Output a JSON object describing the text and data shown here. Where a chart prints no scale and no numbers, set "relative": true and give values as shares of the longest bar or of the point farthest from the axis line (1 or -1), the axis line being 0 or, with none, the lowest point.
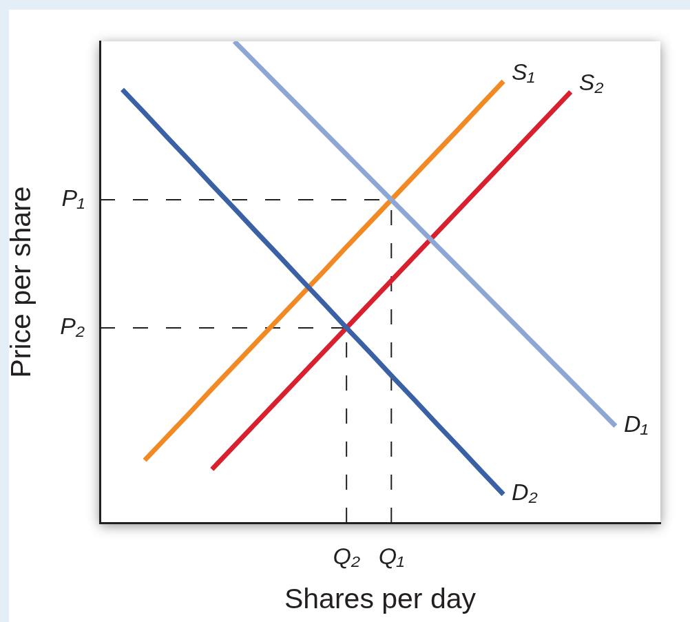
{
  "chart_data": {
    "type": "line",
    "xlabel": "Shares per day",
    "ylabel": "Price per share",
    "relative": true,
    "marker": "none",
    "line_style": "solid",
    "categories": [
      null,
      null,
      null,
      null,
      null,
      null,
      null,
      null,
      null,
      null,
      null,
      "Q₂",
      null,
      "Q₁",
      null,
      null,
      null,
      null,
      null,
      null,
      null,
      null,
      null,
      null,
      null,
      null
    ],
    "series": [
      {
        "name": "S₁",
        "color": "#f18a25",
        "values": [
          null,
          null,
          0.13,
          0.179,
          0.228,
          0.278,
          0.327,
          0.376,
          0.425,
          0.474,
          0.523,
          0.573,
          0.622,
          0.671,
          0.72,
          0.769,
          0.818,
          0.868,
          0.917,
          null,
          null,
          null,
          null,
          null,
          null,
          null
        ]
      },
      {
        "name": "S₂",
        "color": "#d8202e",
        "values": [
          null,
          null,
          null,
          null,
          null,
          0.111,
          0.16,
          0.209,
          0.258,
          0.307,
          0.356,
          0.405,
          0.454,
          0.503,
          0.552,
          0.601,
          0.65,
          0.699,
          0.748,
          0.797,
          0.846,
          0.895,
          null,
          null,
          null,
          null
        ]
      },
      {
        "name": "D₁",
        "color": "#8ea6d3",
        "values": [
          null,
          null,
          null,
          null,
          null,
          null,
          1,
          0.953,
          0.906,
          0.859,
          0.812,
          0.765,
          0.718,
          0.671,
          0.624,
          0.577,
          0.53,
          0.483,
          0.436,
          0.389,
          0.342,
          0.295,
          0.248,
          0.201,
          null,
          null
        ]
      },
      {
        "name": "D₂",
        "color": "#3a60a6",
        "values": [
          null,
          0.9,
          0.851,
          0.801,
          0.752,
          0.702,
          0.653,
          0.603,
          0.554,
          0.504,
          0.455,
          0.405,
          0.356,
          0.306,
          0.257,
          0.207,
          0.158,
          0.108,
          0.059,
          null,
          null,
          null,
          null,
          null,
          null,
          null
        ]
      }
    ],
    "ref_lines": [
      {
        "axis": "y",
        "value": 0.671,
        "label": "P₁",
        "color": "#231f20",
        "line_style": "dashed"
      },
      {
        "axis": "x",
        "value": "Q₁",
        "color": "#231f20",
        "line_style": "dashed"
      },
      {
        "axis": "y",
        "value": 0.405,
        "label": "P₂",
        "color": "#231f20",
        "line_style": "dashed"
      },
      {
        "axis": "x",
        "value": "Q₂",
        "color": "#231f20",
        "line_style": "dashed"
      }
    ]
  }
}
